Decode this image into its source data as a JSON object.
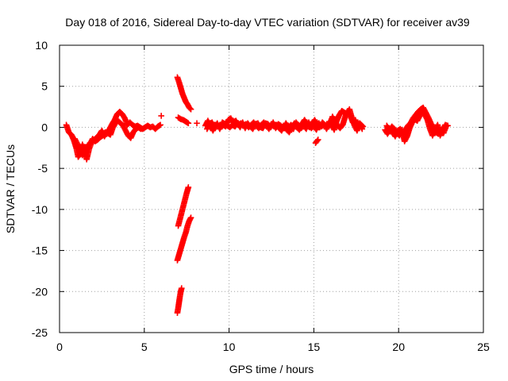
{
  "chart_data": {
    "type": "scatter",
    "title": "Day 018 of 2016, Sidereal Day-to-day VTEC variation (SDTVAR) for receiver av39",
    "xlabel": "GPS time / hours",
    "ylabel": "SDTVAR / TECUs",
    "xlim": [
      0,
      25
    ],
    "ylim": [
      -25,
      10
    ],
    "xticks": [
      0,
      5,
      10,
      15,
      20,
      25
    ],
    "yticks": [
      10,
      5,
      0,
      -5,
      -10,
      -15,
      -20,
      -25
    ],
    "grid": true,
    "legend": "none",
    "marker": "plus",
    "series": [
      {
        "name": "SDTVAR",
        "color": "#ff0000",
        "segments": [
          [
            [
              0.4,
              0.3
            ],
            [
              0.55,
              -0.6
            ],
            [
              0.7,
              -0.9
            ],
            [
              0.85,
              -1.6
            ],
            [
              1.0,
              -2.6
            ],
            [
              1.1,
              -3.6
            ],
            [
              1.2,
              -3.3
            ],
            [
              1.35,
              -2.1
            ],
            [
              1.5,
              -2.9
            ],
            [
              1.6,
              -3.9
            ],
            [
              1.75,
              -2.6
            ],
            [
              1.9,
              -1.8
            ],
            [
              2.05,
              -1.6
            ],
            [
              2.2,
              -1.2
            ],
            [
              2.35,
              -0.9
            ],
            [
              2.5,
              -0.4
            ],
            [
              2.65,
              -1.1
            ],
            [
              2.8,
              -0.6
            ],
            [
              2.95,
              -0.2
            ],
            [
              3.1,
              0.4
            ],
            [
              3.25,
              0.9
            ],
            [
              3.4,
              1.6
            ],
            [
              3.55,
              1.9
            ],
            [
              3.7,
              1.6
            ],
            [
              3.85,
              1.1
            ],
            [
              4.0,
              0.3
            ],
            [
              4.15,
              0.6
            ],
            [
              4.3,
              0.3
            ],
            [
              4.45,
              0.1
            ],
            [
              4.6,
              0.2
            ],
            [
              4.75,
              0.0
            ],
            [
              4.9,
              -0.2
            ],
            [
              5.05,
              0.0
            ],
            [
              5.2,
              0.2
            ],
            [
              5.35,
              0.0
            ],
            [
              5.5,
              0.1
            ],
            [
              5.65,
              -0.2
            ],
            [
              5.8,
              0.1
            ],
            [
              5.95,
              0.3
            ]
          ],
          [
            [
              0.9,
              -1.4
            ],
            [
              1.05,
              -2.0
            ],
            [
              1.2,
              -2.8
            ],
            [
              1.35,
              -3.4
            ],
            [
              1.5,
              -3.0
            ],
            [
              1.65,
              -2.2
            ],
            [
              1.8,
              -2.0
            ],
            [
              1.95,
              -1.4
            ],
            [
              2.1,
              -1.7
            ],
            [
              2.25,
              -1.5
            ],
            [
              2.4,
              -1.2
            ],
            [
              2.55,
              -1.0
            ],
            [
              2.7,
              -0.6
            ],
            [
              2.85,
              -0.7
            ],
            [
              3.0,
              -0.9
            ],
            [
              3.15,
              0.0
            ],
            [
              3.3,
              0.5
            ],
            [
              3.45,
              0.8
            ],
            [
              3.6,
              0.5
            ],
            [
              3.75,
              0.2
            ],
            [
              3.9,
              -0.4
            ],
            [
              4.05,
              -1.0
            ],
            [
              4.2,
              -1.3
            ],
            [
              4.35,
              -0.6
            ],
            [
              4.5,
              -0.2
            ],
            [
              4.65,
              0.0
            ],
            [
              4.8,
              -0.2
            ]
          ],
          [
            [
              6.0,
              1.4
            ]
          ],
          [
            [
              6.95,
              6.1
            ],
            [
              7.05,
              5.5
            ],
            [
              7.15,
              4.8
            ],
            [
              7.25,
              4.1
            ],
            [
              7.35,
              3.6
            ],
            [
              7.45,
              3.1
            ],
            [
              7.55,
              2.8
            ],
            [
              7.65,
              2.4
            ],
            [
              7.75,
              2.2
            ]
          ],
          [
            [
              7.0,
              1.2
            ],
            [
              7.15,
              1.0
            ],
            [
              7.3,
              0.9
            ],
            [
              7.45,
              0.7
            ],
            [
              7.6,
              0.5
            ]
          ],
          [
            [
              7.0,
              -12.0
            ],
            [
              7.1,
              -11.2
            ],
            [
              7.2,
              -10.4
            ],
            [
              7.3,
              -9.6
            ],
            [
              7.4,
              -8.8
            ],
            [
              7.5,
              -8.0
            ],
            [
              7.6,
              -7.3
            ]
          ],
          [
            [
              6.95,
              -16.2
            ],
            [
              7.05,
              -15.5
            ],
            [
              7.15,
              -14.8
            ],
            [
              7.25,
              -14.1
            ],
            [
              7.35,
              -13.4
            ],
            [
              7.45,
              -12.8
            ],
            [
              7.55,
              -12.0
            ],
            [
              7.65,
              -11.4
            ],
            [
              7.75,
              -11.0
            ]
          ],
          [
            [
              6.95,
              -22.6
            ],
            [
              7.0,
              -22.0
            ],
            [
              7.05,
              -21.3
            ],
            [
              7.1,
              -20.6
            ],
            [
              7.15,
              -20.0
            ],
            [
              7.2,
              -19.6
            ]
          ],
          [
            [
              8.1,
              0.5
            ]
          ],
          [
            [
              8.6,
              0.2
            ],
            [
              8.75,
              0.8
            ],
            [
              8.9,
              0.2
            ],
            [
              9.05,
              -0.4
            ],
            [
              9.2,
              0.3
            ],
            [
              9.35,
              0.2
            ],
            [
              9.5,
              0.0
            ],
            [
              9.65,
              0.3
            ],
            [
              9.8,
              0.1
            ],
            [
              9.95,
              0.9
            ],
            [
              10.1,
              1.1
            ],
            [
              10.25,
              0.6
            ],
            [
              10.4,
              0.8
            ],
            [
              10.55,
              0.3
            ],
            [
              10.7,
              0.5
            ],
            [
              10.85,
              0.2
            ],
            [
              11.0,
              0.4
            ],
            [
              11.15,
              0.0
            ],
            [
              11.3,
              0.3
            ],
            [
              11.45,
              0.6
            ],
            [
              11.6,
              0.2
            ],
            [
              11.75,
              -0.1
            ],
            [
              11.9,
              0.3
            ],
            [
              12.05,
              0.6
            ],
            [
              12.2,
              0.2
            ],
            [
              12.35,
              -0.2
            ],
            [
              12.5,
              0.4
            ],
            [
              12.65,
              0.1
            ],
            [
              12.8,
              0.3
            ],
            [
              12.95,
              -0.1
            ],
            [
              13.1,
              -0.4
            ],
            [
              13.25,
              0.2
            ],
            [
              13.4,
              -0.3
            ],
            [
              13.55,
              -0.6
            ],
            [
              13.7,
              0.0
            ],
            [
              13.85,
              0.5
            ],
            [
              14.0,
              0.0
            ],
            [
              14.15,
              -0.3
            ],
            [
              14.3,
              0.4
            ],
            [
              14.45,
              0.9
            ],
            [
              14.6,
              0.4
            ],
            [
              14.75,
              0.0
            ],
            [
              14.9,
              0.5
            ],
            [
              15.05,
              0.9
            ],
            [
              15.2,
              0.3
            ],
            [
              15.35,
              0.0
            ],
            [
              15.5,
              0.6
            ],
            [
              15.65,
              0.3
            ],
            [
              15.8,
              0.0
            ],
            [
              15.95,
              0.3
            ],
            [
              16.1,
              1.3
            ],
            [
              16.25,
              0.7
            ],
            [
              16.4,
              0.2
            ],
            [
              16.55,
              -0.1
            ],
            [
              16.7,
              0.3
            ],
            [
              16.85,
              1.3
            ],
            [
              17.0,
              2.0
            ],
            [
              17.15,
              1.4
            ],
            [
              17.3,
              0.6
            ],
            [
              17.45,
              0.9
            ],
            [
              17.6,
              0.0
            ],
            [
              17.75,
              0.4
            ],
            [
              17.9,
              0.1
            ]
          ],
          [
            [
              8.7,
              -0.2
            ],
            [
              8.85,
              0.4
            ],
            [
              9.0,
              0.6
            ],
            [
              9.15,
              -0.1
            ],
            [
              9.3,
              0.5
            ],
            [
              9.45,
              -0.2
            ],
            [
              9.6,
              0.6
            ],
            [
              9.75,
              0.4
            ],
            [
              9.9,
              0.2
            ],
            [
              10.05,
              0.0
            ],
            [
              10.2,
              0.3
            ],
            [
              10.35,
              0.1
            ],
            [
              10.5,
              0.5
            ],
            [
              10.65,
              0.0
            ],
            [
              10.8,
              0.6
            ],
            [
              10.95,
              -0.1
            ],
            [
              11.1,
              0.5
            ],
            [
              11.25,
              0.1
            ],
            [
              11.4,
              -0.2
            ],
            [
              11.55,
              0.4
            ],
            [
              11.7,
              0.5
            ],
            [
              11.85,
              0.0
            ],
            [
              12.0,
              -0.1
            ],
            [
              12.15,
              0.5
            ],
            [
              12.3,
              0.4
            ],
            [
              12.45,
              0.0
            ],
            [
              12.6,
              0.6
            ],
            [
              12.75,
              -0.1
            ],
            [
              12.9,
              0.4
            ],
            [
              13.05,
              0.2
            ],
            [
              13.2,
              -0.1
            ],
            [
              13.35,
              0.5
            ],
            [
              13.5,
              0.0
            ],
            [
              13.65,
              0.3
            ],
            [
              13.8,
              -0.2
            ],
            [
              13.95,
              0.6
            ],
            [
              14.1,
              0.2
            ],
            [
              14.25,
              -0.1
            ],
            [
              14.4,
              0.2
            ],
            [
              14.55,
              -0.2
            ],
            [
              14.7,
              0.6
            ],
            [
              14.85,
              -0.1
            ],
            [
              15.0,
              0.2
            ],
            [
              15.15,
              -0.3
            ],
            [
              15.3,
              0.5
            ],
            [
              15.45,
              0.1
            ],
            [
              15.6,
              0.4
            ],
            [
              15.75,
              -0.2
            ],
            [
              15.9,
              0.7
            ],
            [
              16.05,
              0.4
            ],
            [
              16.2,
              -0.3
            ],
            [
              16.35,
              0.8
            ],
            [
              16.5,
              1.5
            ],
            [
              16.65,
              2.0
            ],
            [
              16.8,
              1.8
            ],
            [
              16.95,
              1.6
            ],
            [
              17.1,
              2.2
            ],
            [
              17.25,
              1.1
            ],
            [
              17.4,
              0.2
            ],
            [
              17.55,
              -0.4
            ],
            [
              17.7,
              0.5
            ],
            [
              17.85,
              -0.2
            ]
          ],
          [
            [
              15.1,
              -1.9
            ],
            [
              15.25,
              -1.5
            ]
          ],
          [
            [
              19.2,
              -0.3
            ],
            [
              19.35,
              -0.8
            ],
            [
              19.5,
              -0.2
            ],
            [
              19.65,
              -0.6
            ],
            [
              19.8,
              -1.1
            ],
            [
              19.95,
              -0.4
            ],
            [
              20.1,
              -0.2
            ],
            [
              20.25,
              -0.9
            ],
            [
              20.4,
              -0.3
            ],
            [
              20.55,
              0.2
            ],
            [
              20.7,
              0.5
            ],
            [
              20.85,
              1.1
            ],
            [
              21.0,
              1.5
            ],
            [
              21.15,
              1.9
            ],
            [
              21.3,
              2.2
            ],
            [
              21.45,
              2.4
            ],
            [
              21.6,
              1.8
            ],
            [
              21.75,
              1.2
            ],
            [
              21.9,
              0.5
            ],
            [
              22.05,
              -0.1
            ],
            [
              22.2,
              -0.6
            ],
            [
              22.35,
              -0.8
            ],
            [
              22.5,
              -0.3
            ],
            [
              22.65,
              -0.7
            ],
            [
              22.8,
              0.1
            ]
          ],
          [
            [
              19.3,
              0.2
            ],
            [
              19.45,
              -0.3
            ],
            [
              19.6,
              0.1
            ],
            [
              19.75,
              -0.2
            ],
            [
              19.9,
              -0.6
            ],
            [
              20.05,
              -1.0
            ],
            [
              20.2,
              -0.3
            ],
            [
              20.35,
              -1.7
            ],
            [
              20.5,
              -1.1
            ],
            [
              20.65,
              -0.1
            ],
            [
              20.8,
              0.6
            ],
            [
              20.95,
              1.0
            ],
            [
              21.1,
              0.8
            ],
            [
              21.25,
              1.4
            ],
            [
              21.4,
              2.0
            ],
            [
              21.55,
              1.5
            ],
            [
              21.7,
              0.9
            ],
            [
              21.85,
              -0.2
            ],
            [
              22.0,
              -1.0
            ],
            [
              22.15,
              -0.3
            ],
            [
              22.3,
              0.3
            ],
            [
              22.45,
              -1.0
            ],
            [
              22.6,
              -0.4
            ],
            [
              22.75,
              0.3
            ],
            [
              22.9,
              0.2
            ]
          ]
        ]
      }
    ]
  }
}
